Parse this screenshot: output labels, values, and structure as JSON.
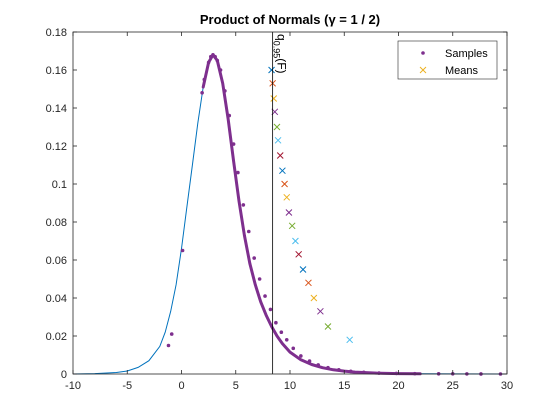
{
  "chart_data": {
    "type": "scatter",
    "title": "Product of Normals (γ = 1 / 2)",
    "xlabel": "",
    "ylabel": "",
    "xlim": [
      -10,
      30
    ],
    "ylim": [
      0,
      0.18
    ],
    "xticks": [
      -10,
      -5,
      0,
      5,
      10,
      15,
      20,
      25,
      30
    ],
    "yticks": [
      0,
      0.02,
      0.04,
      0.06,
      0.08,
      0.1,
      0.12,
      0.14,
      0.16,
      0.18
    ],
    "grid": false,
    "legend_position": "top-right",
    "annotation": {
      "text_main": "q",
      "text_sub": "0.95",
      "text_rest": "(F)",
      "x": 8.4
    },
    "density_curve": {
      "color": "#0072BD",
      "x": [
        -10,
        -8,
        -6,
        -5,
        -4,
        -3,
        -2,
        -1.5,
        -1,
        -0.5,
        0,
        0.5,
        1,
        1.5,
        2,
        2.5,
        2.9,
        3.3,
        3.8,
        4.3,
        4.8,
        5.3,
        5.8,
        6.3,
        6.8,
        7.3,
        7.8,
        8.3,
        8.8,
        9.3,
        10,
        11,
        12,
        13,
        14,
        15,
        16,
        18,
        20,
        22,
        25,
        30
      ],
      "y": [
        0.0,
        0.0002,
        0.0008,
        0.0016,
        0.0035,
        0.007,
        0.0145,
        0.022,
        0.033,
        0.047,
        0.066,
        0.088,
        0.11,
        0.132,
        0.151,
        0.164,
        0.168,
        0.165,
        0.153,
        0.134,
        0.112,
        0.091,
        0.073,
        0.058,
        0.047,
        0.038,
        0.031,
        0.025,
        0.02,
        0.016,
        0.0115,
        0.0075,
        0.005,
        0.0033,
        0.0022,
        0.0015,
        0.001,
        0.0005,
        0.0002,
        0.0001,
        3e-05,
        0.0
      ]
    },
    "series": [
      {
        "name": "Samples",
        "marker": "dot",
        "color": "#7E2F8E",
        "x": [
          -1.2,
          -0.9,
          0.1,
          1.9,
          2.1,
          2.5,
          2.7,
          2.9,
          3.1,
          3.3,
          3.6,
          4.0,
          4.4,
          4.8,
          5.2,
          5.7,
          6.2,
          6.7,
          7.2,
          7.7,
          8.2,
          8.7,
          9.2,
          9.7,
          10.3,
          11.0,
          11.8,
          12.6,
          13.5,
          14.5,
          15.6,
          16.8,
          18.2,
          19.8,
          21.5,
          23.7,
          25.0,
          26.3,
          27.6,
          29.4
        ],
        "y": [
          0.015,
          0.021,
          0.065,
          0.148,
          0.155,
          0.164,
          0.167,
          0.168,
          0.167,
          0.165,
          0.16,
          0.149,
          0.136,
          0.121,
          0.106,
          0.089,
          0.075,
          0.061,
          0.05,
          0.041,
          0.034,
          0.027,
          0.022,
          0.018,
          0.0135,
          0.0095,
          0.0068,
          0.0048,
          0.0033,
          0.0022,
          0.0014,
          0.0009,
          0.0005,
          0.0003,
          0.0002,
          0.0001,
          0.0001,
          5e-05,
          3e-05,
          0.0
        ]
      },
      {
        "name": "Means",
        "marker": "x",
        "colors": [
          "#0072BD",
          "#D95319",
          "#EDB120",
          "#7E2F8E",
          "#77AC30",
          "#4DBEEE",
          "#A2142F"
        ],
        "x": [
          8.3,
          8.4,
          8.5,
          8.6,
          8.8,
          8.9,
          9.1,
          9.3,
          9.5,
          9.7,
          9.9,
          10.2,
          10.5,
          10.8,
          11.2,
          11.7,
          12.2,
          12.8,
          13.5,
          15.5
        ],
        "y": [
          0.16,
          0.153,
          0.145,
          0.138,
          0.13,
          0.123,
          0.115,
          0.107,
          0.1,
          0.093,
          0.085,
          0.078,
          0.07,
          0.063,
          0.055,
          0.048,
          0.04,
          0.033,
          0.025,
          0.018
        ]
      }
    ]
  }
}
